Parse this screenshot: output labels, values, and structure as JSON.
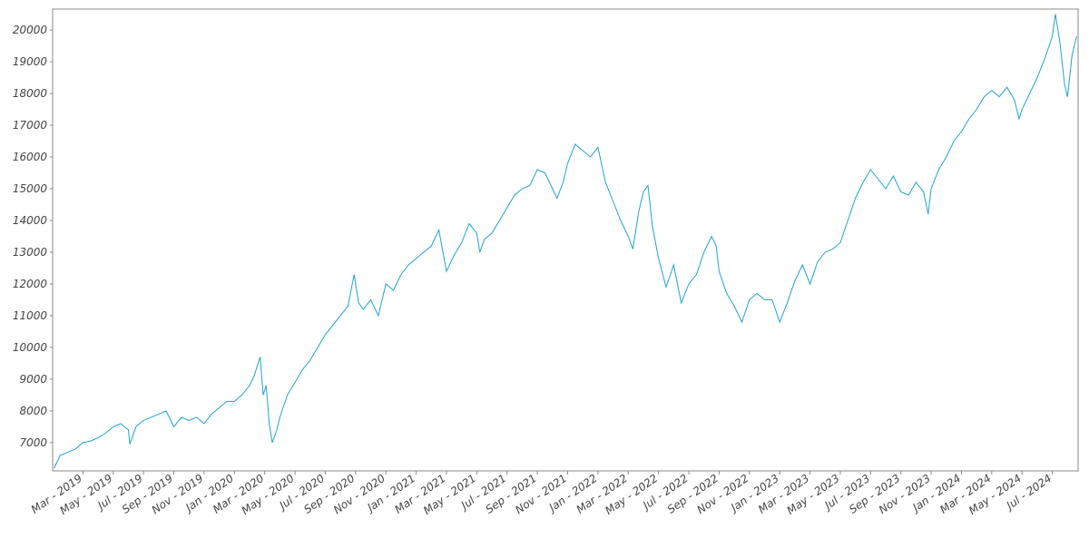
{
  "chart_data": {
    "type": "line",
    "xlim": [
      0,
      67.7
    ],
    "ylim": [
      6110,
      20660
    ],
    "xticks": [
      {
        "value": 2,
        "label": "Mar - 2019"
      },
      {
        "value": 4,
        "label": "May - 2019"
      },
      {
        "value": 6,
        "label": "Jul - 2019"
      },
      {
        "value": 8,
        "label": "Sep - 2019"
      },
      {
        "value": 10,
        "label": "Nov - 2019"
      },
      {
        "value": 12,
        "label": "Jan - 2020"
      },
      {
        "value": 14,
        "label": "Mar - 2020"
      },
      {
        "value": 16,
        "label": "May - 2020"
      },
      {
        "value": 18,
        "label": "Jul - 2020"
      },
      {
        "value": 20,
        "label": "Sep - 2020"
      },
      {
        "value": 22,
        "label": "Nov - 2020"
      },
      {
        "value": 24,
        "label": "Jan - 2021"
      },
      {
        "value": 26,
        "label": "Mar - 2021"
      },
      {
        "value": 28,
        "label": "May - 2021"
      },
      {
        "value": 30,
        "label": "Jul - 2021"
      },
      {
        "value": 32,
        "label": "Sep - 2021"
      },
      {
        "value": 34,
        "label": "Nov - 2021"
      },
      {
        "value": 36,
        "label": "Jan - 2022"
      },
      {
        "value": 38,
        "label": "Mar - 2022"
      },
      {
        "value": 40,
        "label": "May - 2022"
      },
      {
        "value": 42,
        "label": "Jul - 2022"
      },
      {
        "value": 44,
        "label": "Sep - 2022"
      },
      {
        "value": 46,
        "label": "Nov - 2022"
      },
      {
        "value": 48,
        "label": "Jan - 2023"
      },
      {
        "value": 50,
        "label": "Mar - 2023"
      },
      {
        "value": 52,
        "label": "May - 2023"
      },
      {
        "value": 54,
        "label": "Jul - 2023"
      },
      {
        "value": 56,
        "label": "Sep - 2023"
      },
      {
        "value": 58,
        "label": "Nov - 2023"
      },
      {
        "value": 60,
        "label": "Jan - 2024"
      },
      {
        "value": 62,
        "label": "Mar - 2024"
      },
      {
        "value": 64,
        "label": "May - 2024"
      },
      {
        "value": 66,
        "label": "Jul - 2024"
      }
    ],
    "yticks": [
      7000,
      8000,
      9000,
      10000,
      11000,
      12000,
      13000,
      14000,
      15000,
      16000,
      17000,
      18000,
      19000,
      20000
    ],
    "color": "#1fa2d6",
    "x": [
      0.1,
      0.5,
      1,
      1.5,
      2,
      2.5,
      3,
      3.5,
      4,
      4.5,
      5,
      5.1,
      5.5,
      6,
      6.5,
      7,
      7.5,
      8,
      8.5,
      9,
      9.5,
      10,
      10.5,
      11,
      11.5,
      12,
      12.5,
      13,
      13.3,
      13.7,
      13.9,
      14.1,
      14.3,
      14.5,
      14.8,
      15,
      15.5,
      16,
      16.5,
      17,
      17.5,
      18,
      18.5,
      19,
      19.5,
      19.9,
      20.2,
      20.5,
      21,
      21.5,
      22,
      22.5,
      23,
      23.5,
      24,
      24.5,
      25,
      25.5,
      26,
      26.5,
      27,
      27.5,
      28,
      28.2,
      28.5,
      29,
      29.5,
      30,
      30.5,
      31,
      31.5,
      32,
      32.5,
      33,
      33.3,
      33.7,
      34,
      34.5,
      35,
      35.5,
      36,
      36.5,
      37,
      37.5,
      38,
      38.3,
      38.7,
      39,
      39.3,
      39.6,
      40,
      40.5,
      41,
      41.5,
      42,
      42.5,
      43,
      43.5,
      43.8,
      44,
      44.5,
      45,
      45.5,
      46,
      46.5,
      47,
      47.5,
      48,
      48.5,
      49,
      49.5,
      50,
      50.5,
      51,
      51.5,
      52,
      52.5,
      53,
      53.5,
      54,
      54.5,
      55,
      55.5,
      56,
      56.5,
      57,
      57.5,
      57.8,
      58,
      58.5,
      59,
      59.5,
      60,
      60.5,
      61,
      61.5,
      62,
      62.5,
      63,
      63.5,
      63.8,
      64,
      64.5,
      65,
      65.5,
      66,
      66.2,
      66.5,
      66.8,
      67,
      67.3,
      67.6
    ],
    "values": [
      6200,
      6600,
      6700,
      6800,
      7000,
      7050,
      7150,
      7300,
      7500,
      7600,
      7400,
      6950,
      7500,
      7700,
      7800,
      7900,
      8000,
      7500,
      7800,
      7700,
      7800,
      7600,
      7900,
      8100,
      8300,
      8300,
      8500,
      8800,
      9100,
      9700,
      8500,
      8800,
      7600,
      7000,
      7400,
      7800,
      8500,
      8900,
      9300,
      9600,
      10000,
      10400,
      10700,
      11000,
      11300,
      12300,
      11400,
      11200,
      11500,
      11000,
      12000,
      11800,
      12300,
      12600,
      12800,
      13000,
      13200,
      13700,
      12400,
      12900,
      13300,
      13900,
      13600,
      13000,
      13400,
      13600,
      14000,
      14400,
      14800,
      15000,
      15100,
      15600,
      15500,
      15000,
      14700,
      15200,
      15800,
      16400,
      16200,
      16000,
      16300,
      15200,
      14600,
      14000,
      13500,
      13100,
      14300,
      14900,
      15100,
      13800,
      12800,
      11900,
      12600,
      11400,
      12000,
      12300,
      13000,
      13500,
      13200,
      12400,
      11700,
      11300,
      10800,
      11500,
      11700,
      11500,
      11500,
      10800,
      11400,
      12100,
      12600,
      12000,
      12700,
      13000,
      13100,
      13300,
      14000,
      14700,
      15200,
      15600,
      15300,
      15000,
      15400,
      14900,
      14800,
      15200,
      14900,
      14200,
      15000,
      15600,
      16000,
      16500,
      16800,
      17200,
      17500,
      17900,
      18100,
      17900,
      18200,
      17800,
      17200,
      17500,
      18000,
      18500,
      19100,
      19800,
      20500,
      19600,
      18300,
      17900,
      19200,
      19800
    ]
  }
}
